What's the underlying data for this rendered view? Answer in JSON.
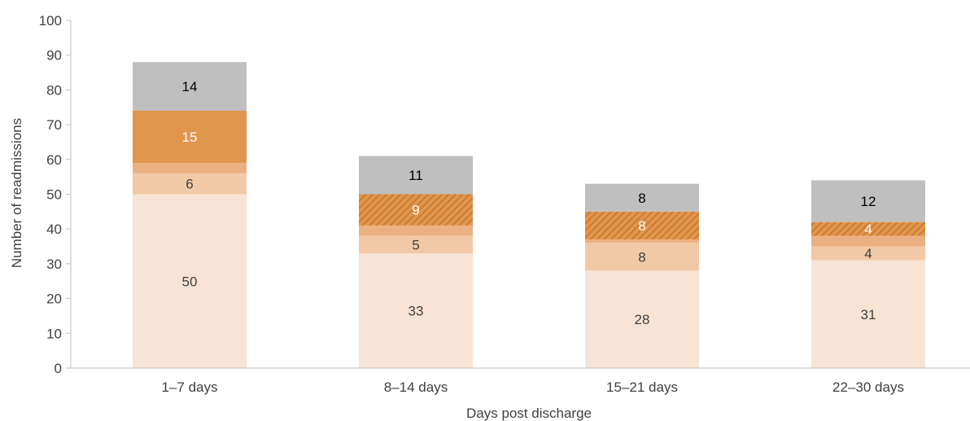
{
  "chart_data": {
    "type": "bar",
    "stacked": true,
    "categories": [
      "1–7 days",
      "8–14 days",
      "15–21 days",
      "22–30 days"
    ],
    "series": [
      {
        "values": [
          50,
          33,
          28,
          31
        ],
        "color": "#f7e4d4",
        "pattern": "solid",
        "label_color": "#404040",
        "labels": [
          "50",
          "33",
          "28",
          "31"
        ]
      },
      {
        "values": [
          6,
          5,
          8,
          4
        ],
        "color": "#f2c9a6",
        "pattern": "solid",
        "label_color": "#404040",
        "labels": [
          "6",
          "5",
          "8",
          "4"
        ]
      },
      {
        "values": [
          3,
          3,
          1,
          3
        ],
        "color": "#ebb082",
        "pattern": "solid",
        "label_color": "#404040",
        "labels": [
          "",
          "",
          "",
          ""
        ]
      },
      {
        "values": [
          15,
          9,
          8,
          4
        ],
        "color": "#e0964d",
        "pattern_by_category": [
          "solid",
          "hatched",
          "hatched",
          "hatched"
        ],
        "label_color": "#ffffff",
        "labels": [
          "15",
          "9",
          "8",
          "4"
        ]
      },
      {
        "values": [
          14,
          11,
          8,
          12
        ],
        "color": "#bfbfbf",
        "pattern": "solid",
        "label_color": "#000000",
        "labels": [
          "14",
          "11",
          "8",
          "12"
        ]
      }
    ],
    "totals": [
      88,
      61,
      53,
      54
    ],
    "xlabel": "Days post discharge",
    "ylabel": "Number of readmissions",
    "ylim": [
      0,
      100
    ],
    "yticks": [
      0,
      10,
      20,
      30,
      40,
      50,
      60,
      70,
      80,
      90,
      100
    ],
    "grid": false,
    "legend": "none"
  }
}
